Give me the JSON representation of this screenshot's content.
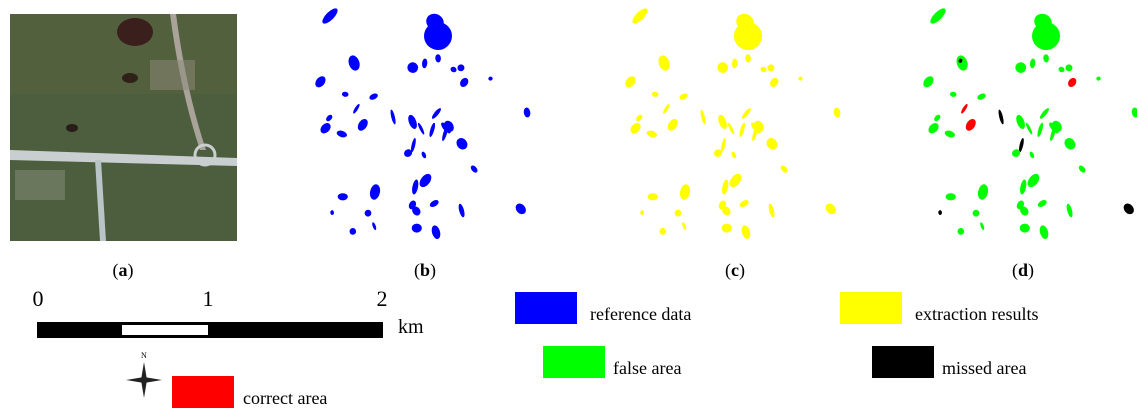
{
  "panels": [
    {
      "caption": [
        "(",
        "a",
        ")"
      ]
    },
    {
      "caption": [
        "(",
        "b",
        ")"
      ]
    },
    {
      "caption": [
        "(",
        "c",
        ")"
      ]
    },
    {
      "caption": [
        "(",
        "d",
        ")"
      ]
    }
  ],
  "scale_bar": {
    "labels": [
      "0",
      "1",
      "2"
    ],
    "unit": "km"
  },
  "north_arrow": {
    "label": "N"
  },
  "legend": [
    {
      "label": "reference data",
      "color": "#0000ff"
    },
    {
      "label": "extraction results",
      "color": "#ffff00"
    },
    {
      "label": "false area",
      "color": "#00ff00"
    },
    {
      "label": "missed area",
      "color": "#000000"
    },
    {
      "label": "correct area",
      "color": "#ff0000"
    }
  ]
}
